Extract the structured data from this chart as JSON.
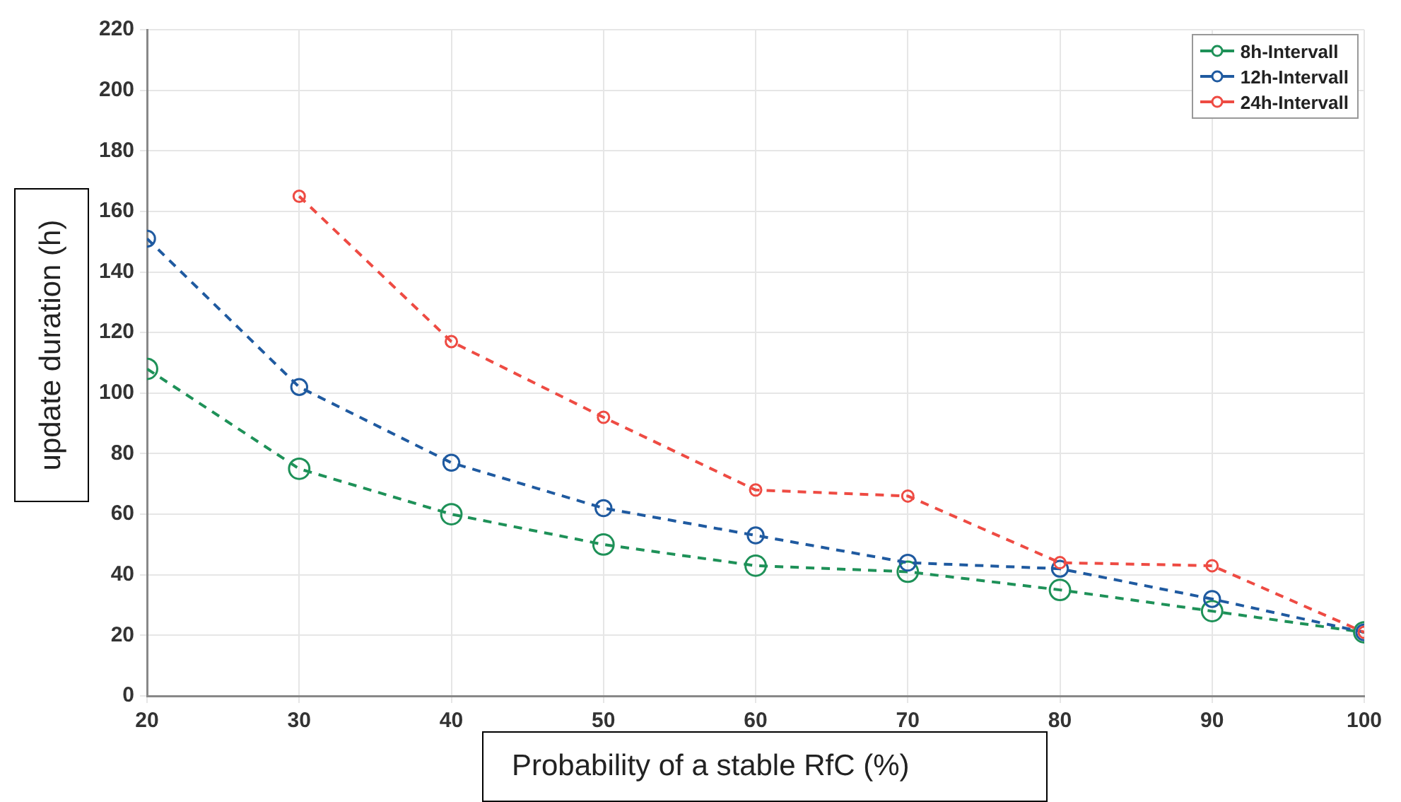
{
  "chart_data": {
    "type": "line",
    "xlabel": "Probability of a stable RfC (%)",
    "ylabel": "update duration (h)",
    "x": [
      20,
      30,
      40,
      50,
      60,
      70,
      80,
      90,
      100
    ],
    "series": [
      {
        "name": "8h-Intervall",
        "color": "#1e9158",
        "values": [
          108,
          75,
          60,
          50,
          43,
          41,
          35,
          28,
          21
        ]
      },
      {
        "name": "12h-Intervall",
        "color": "#1f5aa0",
        "values": [
          151,
          102,
          77,
          62,
          53,
          44,
          42,
          32,
          21
        ]
      },
      {
        "name": "24h-Intervall",
        "color": "#ee4b43",
        "values": [
          null,
          165,
          117,
          92,
          68,
          66,
          44,
          43,
          21
        ]
      }
    ],
    "xlim": [
      20,
      100
    ],
    "xticks": [
      20,
      30,
      40,
      50,
      60,
      70,
      80,
      90,
      100
    ],
    "ylim": [
      0,
      220
    ],
    "yticks": [
      0,
      20,
      40,
      60,
      80,
      100,
      120,
      140,
      160,
      180,
      200,
      220
    ],
    "grid": true,
    "legend": "top right",
    "marker": "circle",
    "line_style": "dashed"
  }
}
